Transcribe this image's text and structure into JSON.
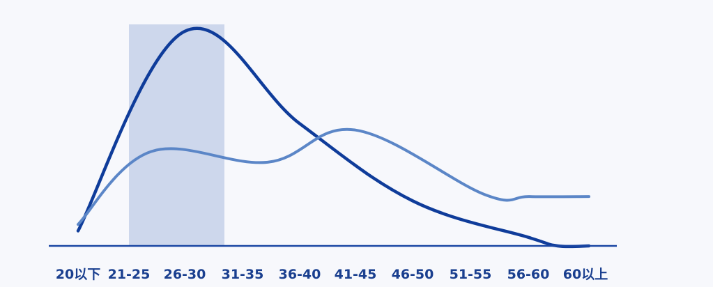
{
  "chart_data": {
    "type": "line",
    "title": "",
    "xlabel": "",
    "ylabel": "",
    "categories": [
      "20以下",
      "21-25",
      "26-30",
      "31-35",
      "36-40",
      "41-45",
      "46-50",
      "51-55",
      "56-60",
      "60以上"
    ],
    "ylim": [
      0,
      100
    ],
    "grid": false,
    "legend": "none",
    "highlight_range": [
      "21-25",
      "26-30"
    ],
    "highlight_color": "#c8d3ea",
    "axis_color": "#1a46a3",
    "series": [
      {
        "values": [
          7,
          100,
          57,
          21,
          4,
          0,
          0
        ],
        "x": [
          "20以下",
          "26-30",
          "36-40",
          "46-50",
          "56-60",
          "60以上",
          "60以上"
        ],
        "color": "#0f3c9a"
      },
      {
        "values": [
          10,
          44,
          39,
          54,
          24,
          23,
          23
        ],
        "x": [
          "20以下",
          "21-25",
          "31-35",
          "41-45",
          "51-55",
          "60以上",
          "60以上"
        ],
        "color": "#5b86c7"
      }
    ]
  }
}
